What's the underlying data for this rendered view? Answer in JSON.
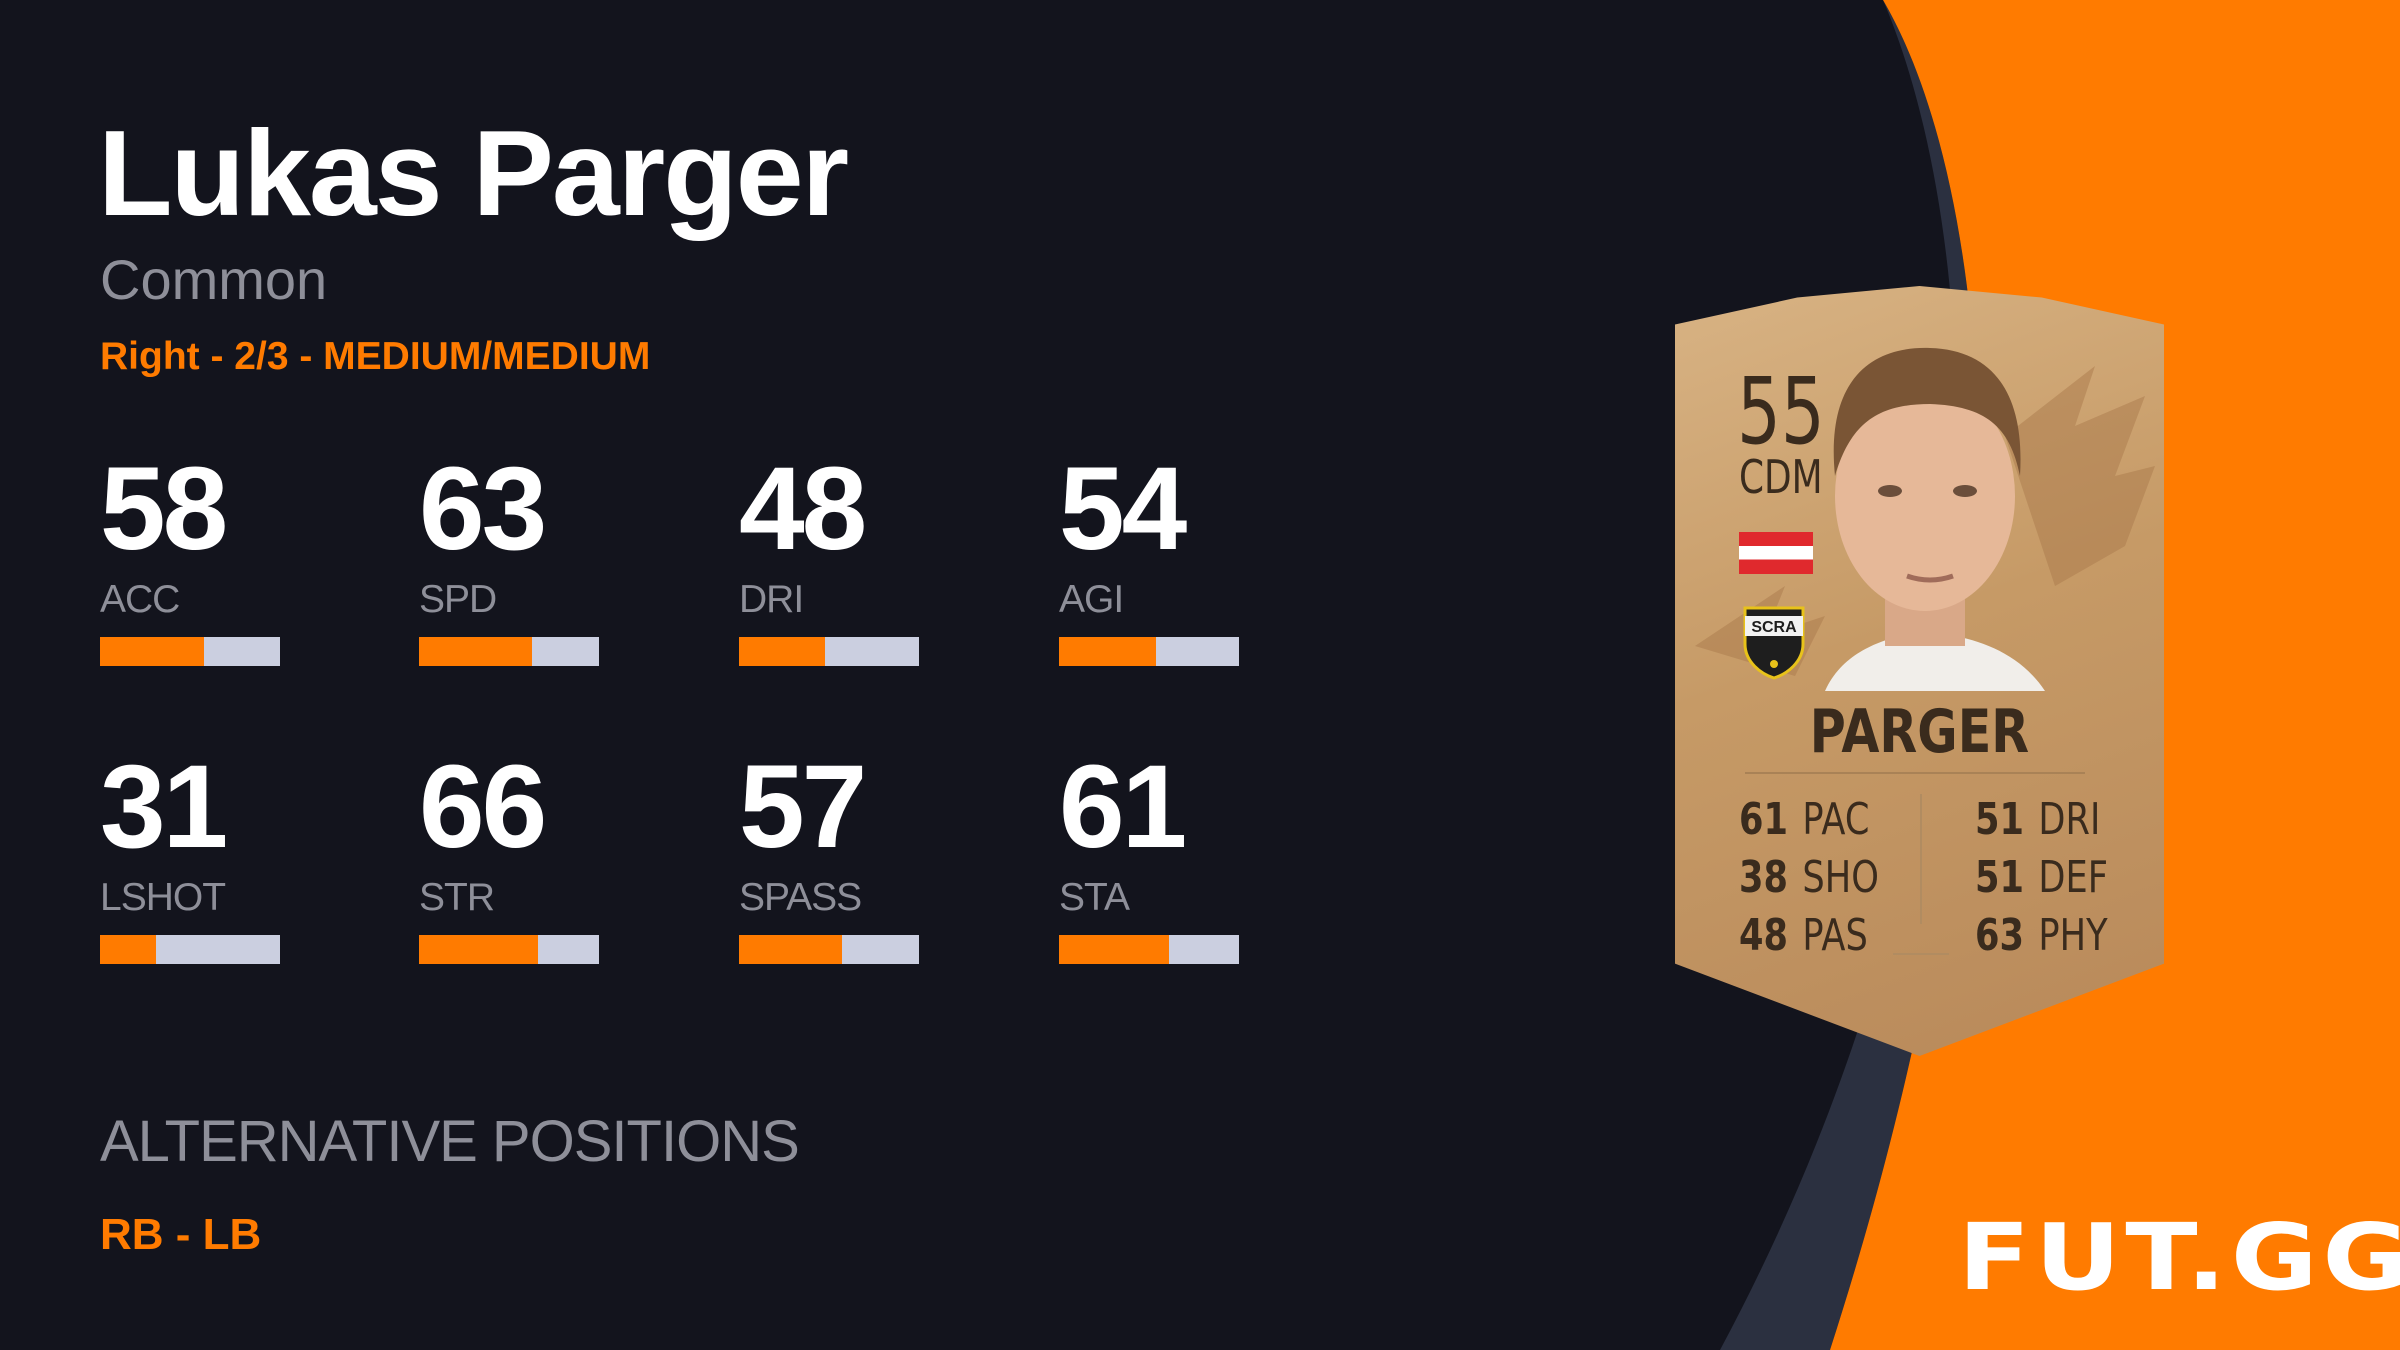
{
  "player": {
    "name": "Lukas Parger",
    "rarity": "Common",
    "meta": "Right - 2/3 - MEDIUM/MEDIUM"
  },
  "stats": [
    {
      "label": "ACC",
      "value": "58",
      "fraction": 0.58
    },
    {
      "label": "SPD",
      "value": "63",
      "fraction": 0.63
    },
    {
      "label": "DRI",
      "value": "48",
      "fraction": 0.48
    },
    {
      "label": "AGI",
      "value": "54",
      "fraction": 0.54
    },
    {
      "label": "LSHOT",
      "value": "31",
      "fraction": 0.31
    },
    {
      "label": "STR",
      "value": "66",
      "fraction": 0.66
    },
    {
      "label": "SPASS",
      "value": "57",
      "fraction": 0.57
    },
    {
      "label": "STA",
      "value": "61",
      "fraction": 0.61
    }
  ],
  "alternative_positions": {
    "title": "ALTERNATIVE POSITIONS",
    "value": "RB - LB"
  },
  "card": {
    "rating": "55",
    "position": "CDM",
    "name": "PARGER",
    "nation_flag": "austria-flag",
    "club_badge": "SCRA",
    "face_stats": [
      {
        "value": "61",
        "label": "PAC"
      },
      {
        "value": "38",
        "label": "SHO"
      },
      {
        "value": "48",
        "label": "PAS"
      },
      {
        "value": "51",
        "label": "DRI"
      },
      {
        "value": "51",
        "label": "DEF"
      },
      {
        "value": "63",
        "label": "PHY"
      }
    ]
  },
  "brand": {
    "logo": "FUT.GG",
    "accent": "#ff7b00",
    "background": "#13141d"
  }
}
